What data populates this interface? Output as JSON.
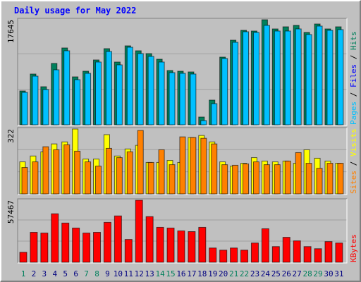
{
  "title": "Daily usage for May 2022",
  "categories": [
    "1",
    "2",
    "3",
    "4",
    "5",
    "6",
    "7",
    "8",
    "9",
    "10",
    "11",
    "12",
    "13",
    "14",
    "15",
    "16",
    "17",
    "18",
    "19",
    "20",
    "21",
    "22",
    "23",
    "24",
    "25",
    "26",
    "27",
    "28",
    "29",
    "30",
    "31"
  ],
  "category_colors": [
    "#00805c",
    "#000080",
    "#000080",
    "#000080",
    "#000080",
    "#000080",
    "#00805c",
    "#00805c",
    "#000080",
    "#000080",
    "#000080",
    "#000080",
    "#000080",
    "#00805c",
    "#00805c",
    "#000080",
    "#000080",
    "#000080",
    "#000080",
    "#000080",
    "#00805c",
    "#00805c",
    "#000080",
    "#000080",
    "#000080",
    "#000080",
    "#000080",
    "#00805c",
    "#00805c",
    "#000080",
    "#000080"
  ],
  "chart_data": [
    {
      "type": "bar",
      "ylim": [
        0,
        17645
      ],
      "yticks": [
        17645
      ],
      "series": [
        {
          "name": "Hits",
          "color": "#00805c",
          "values": [
            5684,
            8526,
            6395,
            10303,
            12908,
            8053,
            9000,
            10895,
            12790,
            10540,
            13263,
            12434,
            11961,
            11013,
            9118,
            9000,
            8882,
            1303,
            4145,
            11368,
            14211,
            15869,
            15750,
            17645,
            16105,
            16461,
            16697,
            15513,
            16934,
            16105,
            16461
          ]
        },
        {
          "name": "Files",
          "color": "#0000ff",
          "values": [
            null,
            null,
            null,
            null,
            null,
            null,
            null,
            null,
            null,
            null,
            null,
            null,
            null,
            null,
            null,
            null,
            null,
            null,
            null,
            null,
            null,
            null,
            null,
            null,
            null,
            null,
            null,
            null,
            null,
            null,
            null
          ]
        },
        {
          "name": "Pages",
          "color": "#00c0ff",
          "values": [
            5447,
            8171,
            5921,
            9237,
            12434,
            7579,
            8645,
            10540,
            12316,
            10066,
            13026,
            11961,
            11487,
            10540,
            8763,
            8645,
            8526,
            711,
            3553,
            11132,
            13855,
            15632,
            15513,
            16697,
            15750,
            15750,
            16105,
            15158,
            16579,
            15868,
            15987
          ]
        }
      ]
    },
    {
      "type": "bar",
      "ylim": [
        0,
        322
      ],
      "yticks": [
        322
      ],
      "series": [
        {
          "name": "Visits",
          "color": "#ffff00",
          "values": [
            159,
            188,
            209,
            248,
            258,
            322,
            173,
            173,
            294,
            188,
            223,
            241,
            156,
            156,
            166,
            156,
            280,
            290,
            258,
            159,
            138,
            152,
            180,
            163,
            159,
            163,
            152,
            219,
            177,
            163,
            152
          ]
        },
        {
          "name": "Sites",
          "color": "#ff8000",
          "values": [
            131,
            159,
            234,
            219,
            244,
            212,
            159,
            138,
            226,
            180,
            209,
            315,
            156,
            219,
            145,
            283,
            280,
            276,
            248,
            145,
            142,
            149,
            159,
            145,
            145,
            163,
            205,
            152,
            127,
            152,
            152
          ]
        }
      ]
    },
    {
      "type": "bar",
      "ylim": [
        0,
        57467
      ],
      "yticks": [
        57467
      ],
      "series": [
        {
          "name": "KBytes",
          "color": "#ff0000",
          "values": [
            9247,
            27741,
            27081,
            44914,
            36328,
            31704,
            27081,
            27741,
            36988,
            42933,
            21136,
            57467,
            42272,
            32365,
            31704,
            29062,
            28402,
            32365,
            13210,
            11229,
            13210,
            11229,
            17834,
            31044,
            14531,
            23118,
            19815,
            14531,
            12550,
            19155,
            17834
          ]
        }
      ]
    }
  ]
}
